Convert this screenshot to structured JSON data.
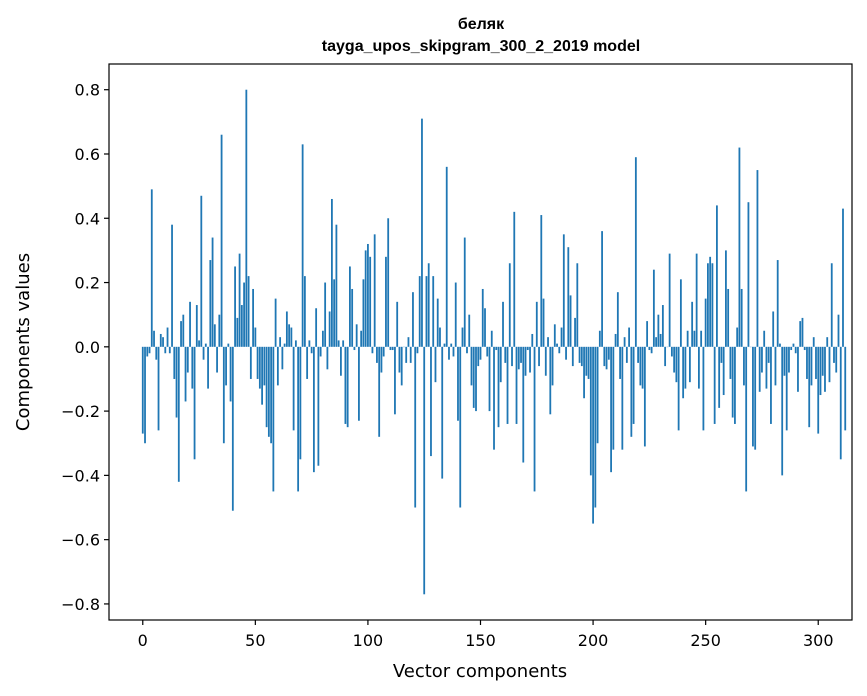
{
  "chart_data": {
    "type": "bar",
    "title": "беляк",
    "subtitle": "tayga_upos_skipgram_300_2_2019 model",
    "xlabel": "Vector components",
    "ylabel": "Components values",
    "xlim": [
      -15,
      315
    ],
    "ylim": [
      -0.85,
      0.88
    ],
    "xticks": [
      0,
      50,
      100,
      150,
      200,
      250,
      300
    ],
    "xtick_labels": [
      "0",
      "50",
      "100",
      "150",
      "200",
      "250",
      "300"
    ],
    "yticks": [
      -0.8,
      -0.6,
      -0.4,
      -0.2,
      0.0,
      0.2,
      0.4,
      0.6,
      0.8
    ],
    "ytick_labels": [
      "−0.8",
      "−0.6",
      "−0.4",
      "−0.2",
      "0.0",
      "0.2",
      "0.4",
      "0.6",
      "0.8"
    ],
    "bar_color": "#1f77b4",
    "grid": false,
    "legend": "none",
    "values": [
      -0.27,
      -0.3,
      -0.03,
      -0.02,
      0.49,
      0.05,
      -0.04,
      -0.26,
      0.04,
      0.03,
      -0.02,
      0.06,
      -0.02,
      0.38,
      -0.1,
      -0.22,
      -0.42,
      0.08,
      0.1,
      -0.17,
      -0.08,
      0.14,
      -0.13,
      -0.35,
      0.13,
      0.02,
      0.47,
      -0.04,
      0.01,
      -0.13,
      0.27,
      0.34,
      0.07,
      -0.08,
      0.1,
      0.66,
      -0.3,
      -0.12,
      0.01,
      -0.17,
      -0.51,
      0.25,
      0.09,
      0.29,
      0.13,
      0.2,
      0.8,
      0.22,
      -0.1,
      0.18,
      0.06,
      -0.1,
      -0.13,
      -0.18,
      -0.12,
      -0.25,
      -0.28,
      -0.3,
      -0.45,
      0.15,
      -0.12,
      0.03,
      -0.07,
      0.01,
      0.11,
      0.07,
      0.06,
      -0.26,
      0.02,
      -0.45,
      -0.35,
      0.63,
      0.22,
      -0.1,
      0.02,
      -0.02,
      -0.39,
      0.12,
      -0.37,
      -0.03,
      0.05,
      0.2,
      -0.07,
      0.11,
      0.46,
      0.21,
      0.38,
      0.02,
      -0.09,
      0.02,
      -0.24,
      -0.25,
      0.25,
      0.18,
      -0.01,
      0.07,
      -0.23,
      0.05,
      0.21,
      0.3,
      0.32,
      0.28,
      -0.02,
      0.35,
      -0.05,
      -0.28,
      -0.08,
      -0.03,
      0.28,
      0.4,
      -0.01,
      -0.01,
      -0.21,
      0.14,
      -0.08,
      -0.12,
      0.0,
      -0.05,
      0.03,
      -0.05,
      0.17,
      -0.5,
      -0.02,
      0.22,
      0.71,
      -0.77,
      0.22,
      0.26,
      -0.34,
      0.22,
      -0.11,
      0.15,
      0.06,
      -0.41,
      0.01,
      0.56,
      -0.04,
      0.01,
      -0.03,
      0.2,
      -0.23,
      -0.5,
      0.06,
      0.34,
      -0.02,
      0.1,
      -0.12,
      -0.19,
      -0.2,
      -0.06,
      -0.04,
      0.18,
      0.12,
      -0.03,
      -0.2,
      0.05,
      -0.32,
      -0.01,
      -0.25,
      -0.11,
      0.14,
      -0.05,
      -0.24,
      0.26,
      -0.06,
      0.42,
      -0.24,
      -0.07,
      -0.05,
      -0.36,
      -0.09,
      -0.01,
      -0.08,
      0.04,
      -0.45,
      0.14,
      -0.06,
      0.41,
      0.15,
      -0.09,
      0.03,
      -0.21,
      -0.12,
      0.07,
      0.01,
      -0.02,
      0.06,
      0.35,
      -0.04,
      0.31,
      0.16,
      -0.06,
      0.09,
      0.26,
      -0.05,
      -0.06,
      -0.16,
      -0.09,
      -0.1,
      -0.4,
      -0.55,
      -0.5,
      -0.3,
      0.05,
      0.36,
      -0.06,
      -0.07,
      -0.04,
      -0.39,
      -0.32,
      0.04,
      0.17,
      -0.1,
      -0.32,
      0.03,
      -0.05,
      0.06,
      -0.28,
      -0.24,
      0.59,
      -0.05,
      -0.12,
      -0.13,
      -0.31,
      0.08,
      -0.01,
      -0.02,
      0.24,
      0.03,
      0.1,
      0.04,
      0.13,
      -0.06,
      0.0,
      0.29,
      -0.03,
      -0.08,
      -0.11,
      -0.26,
      0.21,
      -0.16,
      -0.13,
      0.05,
      -0.11,
      0.14,
      0.05,
      0.29,
      -0.13,
      0.05,
      -0.26,
      0.15,
      0.26,
      0.28,
      0.26,
      -0.24,
      0.44,
      -0.19,
      -0.05,
      -0.15,
      0.3,
      0.18,
      -0.1,
      -0.22,
      -0.24,
      0.06,
      0.62,
      0.18,
      -0.12,
      -0.45,
      0.45,
      0.0,
      -0.31,
      -0.32,
      0.55,
      -0.14,
      -0.08,
      0.05,
      -0.13,
      -0.05,
      -0.24,
      0.11,
      -0.12,
      0.27,
      0.01,
      -0.4,
      -0.09,
      -0.26,
      -0.08,
      -0.01,
      0.01,
      -0.02,
      -0.14,
      0.08,
      0.09,
      -0.01,
      -0.1,
      -0.25,
      -0.12,
      0.03,
      -0.1,
      -0.27,
      -0.15,
      -0.09,
      -0.14,
      0.03,
      -0.11,
      0.26,
      -0.05,
      -0.08,
      0.1,
      -0.35,
      0.43,
      -0.26
    ]
  }
}
